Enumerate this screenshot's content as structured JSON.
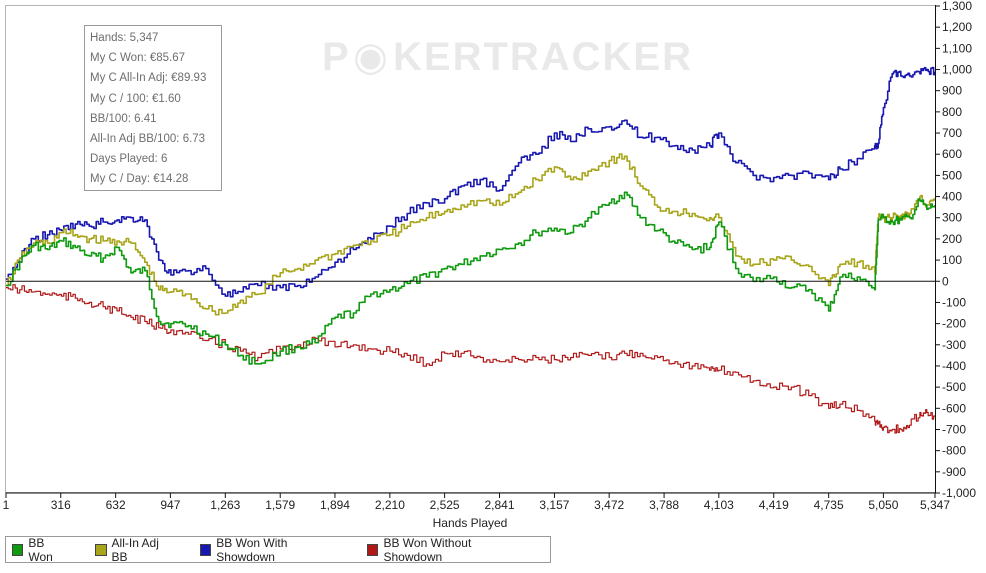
{
  "stats": [
    "Hands: 5,347",
    "My C Won: €85.67",
    "My C All-In Adj: €89.93",
    "My C / 100: €1.60",
    "BB/100: 6.41",
    "All-In Adj BB/100: 6.73",
    "Days Played: 6",
    "My C / Day: €14.28"
  ],
  "watermark": {
    "left": "P",
    "chip": "◉",
    "right": "KERTRACKER"
  },
  "chart_data": {
    "type": "line",
    "xlabel": "Hands Played",
    "ylabel": "",
    "xlim": [
      1,
      5347
    ],
    "ylim": [
      -1000,
      1300
    ],
    "x_ticks": [
      1,
      316,
      632,
      947,
      1263,
      1579,
      1894,
      2210,
      2525,
      2841,
      3157,
      3472,
      3788,
      4103,
      4419,
      4735,
      5050,
      5347
    ],
    "x_tick_labels": [
      "1",
      "316",
      "632",
      "947",
      "1,263",
      "1,579",
      "1,894",
      "2,210",
      "2,525",
      "2,841",
      "3,157",
      "3,472",
      "3,788",
      "4,103",
      "4,419",
      "4,735",
      "5,050",
      "5,347"
    ],
    "y_ticks": [
      1300,
      1200,
      1100,
      1000,
      900,
      800,
      700,
      600,
      500,
      400,
      300,
      200,
      100,
      0,
      -100,
      -200,
      -300,
      -400,
      -500,
      -600,
      -700,
      -800,
      -900,
      -1000
    ],
    "y_tick_labels": [
      "1,300",
      "1,200",
      "1,100",
      "1,000",
      "900",
      "800",
      "700",
      "600",
      "500",
      "400",
      "300",
      "200",
      "100",
      "0",
      "-100",
      "-200",
      "-300",
      "-400",
      "-500",
      "-600",
      "-700",
      "-800",
      "-900",
      "-1,000"
    ],
    "grid": false,
    "legend_position": "bottom-left",
    "series": [
      {
        "name": "BB Won",
        "color": "#0f9a0f",
        "x": [
          1,
          80,
          160,
          240,
          320,
          400,
          480,
          560,
          640,
          720,
          800,
          880,
          950,
          1050,
          1150,
          1263,
          1350,
          1450,
          1579,
          1680,
          1780,
          1894,
          2000,
          2100,
          2210,
          2310,
          2420,
          2525,
          2620,
          2730,
          2841,
          2950,
          3050,
          3157,
          3250,
          3350,
          3472,
          3560,
          3650,
          3750,
          3850,
          3950,
          4050,
          4103,
          4200,
          4300,
          4419,
          4520,
          4620,
          4735,
          4800,
          4900,
          5000,
          5020,
          5050,
          5100,
          5150,
          5200,
          5260,
          5300,
          5347
        ],
        "y": [
          -20,
          90,
          170,
          150,
          190,
          160,
          120,
          110,
          160,
          40,
          50,
          -190,
          -200,
          -210,
          -250,
          -300,
          -350,
          -390,
          -330,
          -310,
          -290,
          -170,
          -150,
          -60,
          -40,
          -10,
          20,
          60,
          80,
          120,
          150,
          180,
          230,
          250,
          230,
          300,
          370,
          420,
          300,
          240,
          180,
          150,
          160,
          280,
          60,
          0,
          20,
          -30,
          -40,
          -140,
          20,
          20,
          -40,
          290,
          300,
          280,
          290,
          300,
          380,
          340,
          360
        ]
      },
      {
        "name": "All-In Adj BB",
        "color": "#a8a51a",
        "x": [
          1,
          80,
          160,
          240,
          320,
          400,
          480,
          560,
          640,
          720,
          800,
          880,
          950,
          1050,
          1150,
          1263,
          1350,
          1450,
          1579,
          1680,
          1780,
          1894,
          2000,
          2100,
          2210,
          2310,
          2420,
          2525,
          2620,
          2730,
          2841,
          2950,
          3050,
          3157,
          3250,
          3350,
          3472,
          3560,
          3650,
          3750,
          3850,
          3950,
          4050,
          4103,
          4200,
          4300,
          4419,
          4520,
          4620,
          4735,
          4800,
          4900,
          5000,
          5020,
          5050,
          5100,
          5150,
          5200,
          5260,
          5300,
          5347
        ],
        "y": [
          -20,
          110,
          180,
          180,
          230,
          220,
          200,
          190,
          190,
          180,
          90,
          -40,
          -50,
          -60,
          -130,
          -150,
          -90,
          -60,
          40,
          60,
          100,
          130,
          170,
          190,
          220,
          260,
          300,
          330,
          360,
          380,
          360,
          420,
          480,
          540,
          480,
          520,
          570,
          590,
          450,
          350,
          330,
          320,
          300,
          300,
          120,
          80,
          100,
          100,
          70,
          -20,
          80,
          90,
          40,
          300,
          300,
          300,
          310,
          320,
          400,
          360,
          380
        ]
      },
      {
        "name": "BB Won With Showdown",
        "color": "#1818b0",
        "x": [
          1,
          80,
          160,
          240,
          320,
          400,
          480,
          560,
          640,
          720,
          800,
          880,
          950,
          1050,
          1150,
          1263,
          1350,
          1450,
          1579,
          1680,
          1780,
          1894,
          2000,
          2100,
          2210,
          2310,
          2420,
          2525,
          2620,
          2730,
          2841,
          2950,
          3050,
          3157,
          3250,
          3350,
          3472,
          3560,
          3650,
          3750,
          3850,
          3950,
          4050,
          4103,
          4200,
          4300,
          4419,
          4520,
          4620,
          4735,
          4800,
          4900,
          5000,
          5020,
          5050,
          5100,
          5150,
          5200,
          5260,
          5300,
          5347
        ],
        "y": [
          10,
          110,
          200,
          220,
          240,
          270,
          260,
          280,
          290,
          300,
          290,
          100,
          30,
          50,
          60,
          -70,
          -50,
          -20,
          -30,
          -20,
          20,
          90,
          150,
          200,
          260,
          320,
          370,
          390,
          450,
          480,
          430,
          560,
          600,
          700,
          660,
          720,
          730,
          760,
          680,
          680,
          640,
          620,
          640,
          700,
          560,
          500,
          490,
          500,
          510,
          480,
          530,
          580,
          640,
          650,
          820,
          980,
          970,
          970,
          980,
          1000,
          990
        ]
      },
      {
        "name": "BB Won Without Showdown",
        "color": "#b01818",
        "x": [
          1,
          80,
          160,
          240,
          320,
          400,
          480,
          560,
          640,
          720,
          800,
          880,
          950,
          1050,
          1150,
          1263,
          1350,
          1450,
          1579,
          1680,
          1780,
          1894,
          2000,
          2100,
          2210,
          2310,
          2420,
          2525,
          2620,
          2730,
          2841,
          2950,
          3050,
          3157,
          3250,
          3350,
          3472,
          3560,
          3650,
          3750,
          3850,
          3950,
          4050,
          4103,
          4200,
          4300,
          4419,
          4520,
          4620,
          4735,
          4800,
          4900,
          5000,
          5020,
          5050,
          5100,
          5150,
          5200,
          5260,
          5300,
          5347
        ],
        "y": [
          -30,
          -40,
          -50,
          -60,
          -70,
          -80,
          -100,
          -120,
          -140,
          -170,
          -190,
          -220,
          -230,
          -250,
          -280,
          -300,
          -330,
          -360,
          -320,
          -300,
          -270,
          -310,
          -300,
          -320,
          -330,
          -350,
          -390,
          -340,
          -340,
          -360,
          -380,
          -370,
          -360,
          -370,
          -360,
          -350,
          -360,
          -340,
          -340,
          -360,
          -380,
          -400,
          -420,
          -420,
          -430,
          -470,
          -500,
          -500,
          -540,
          -600,
          -580,
          -610,
          -660,
          -670,
          -690,
          -700,
          -700,
          -680,
          -620,
          -620,
          -640
        ]
      }
    ]
  }
}
